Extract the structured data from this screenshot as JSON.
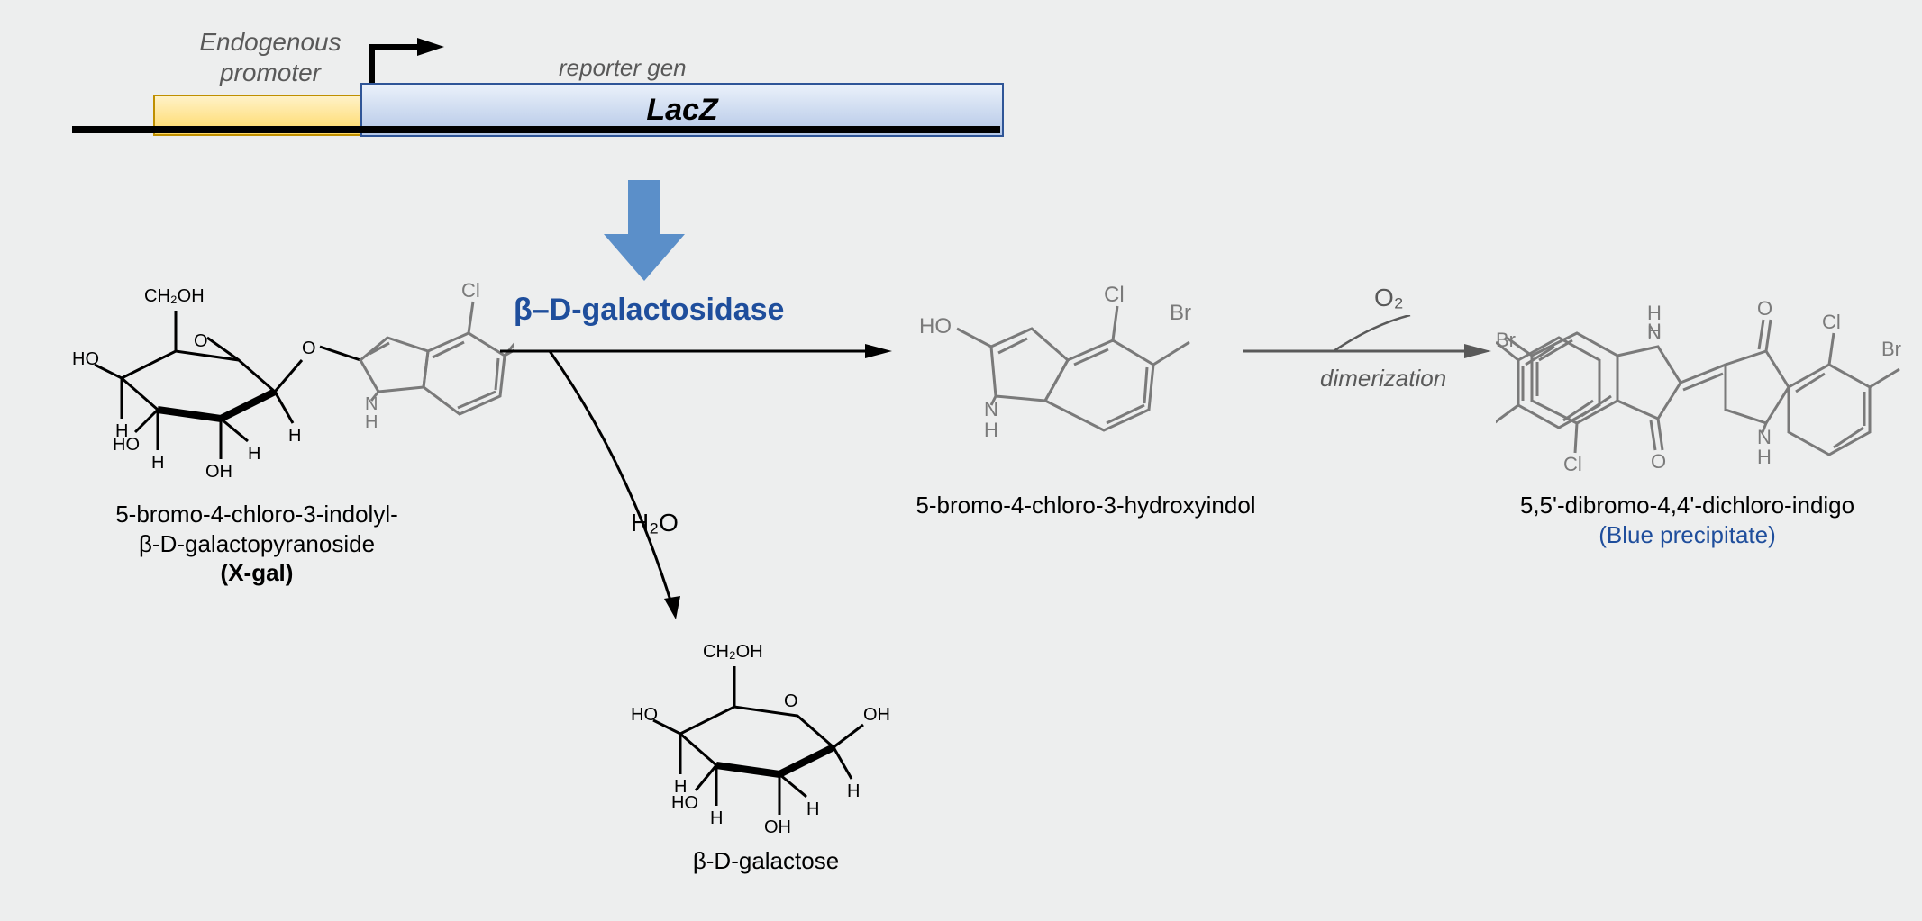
{
  "colors": {
    "background": "#edeeee",
    "promoter_fill_top": "#fff2c7",
    "promoter_fill_bottom": "#ffd966",
    "promoter_border": "#bf8f00",
    "reporter_fill_top": "#eaf1fa",
    "reporter_fill_bottom": "#b4c7e7",
    "reporter_border": "#2f5597",
    "arrow_blue": "#5b8fc9",
    "enzyme_blue": "#1f4e9c",
    "struct_gray": "#7a7a7a",
    "text_gray": "#595959",
    "black": "#000000"
  },
  "gene": {
    "promoter_label": "Endogenous\npromoter",
    "reporter_gen_label": "reporter gen",
    "reporter_name": "LacZ"
  },
  "enzyme": "β–D-galactosidase",
  "reaction": {
    "water": "H₂O",
    "oxygen": "O₂",
    "dimerization": "dimerization"
  },
  "molecules": {
    "xgal": {
      "name_line1": "5-bromo-4-chloro-3-indolyl-",
      "name_line2": "β-D-galactopyranoside",
      "name_line3": "(X-gal)"
    },
    "galactose": {
      "name": "β-D-galactose"
    },
    "hydroxyindol": {
      "name": "5-bromo-4-chloro-3-hydroxyindol"
    },
    "indigo": {
      "name_line1": "5,5'-dibromo-4,4'-dichloro-indigo",
      "name_line2": "(Blue precipitate)"
    }
  },
  "fontsizes": {
    "title_italic": 28,
    "enzyme": 34,
    "caption": 26,
    "small_label": 26
  }
}
